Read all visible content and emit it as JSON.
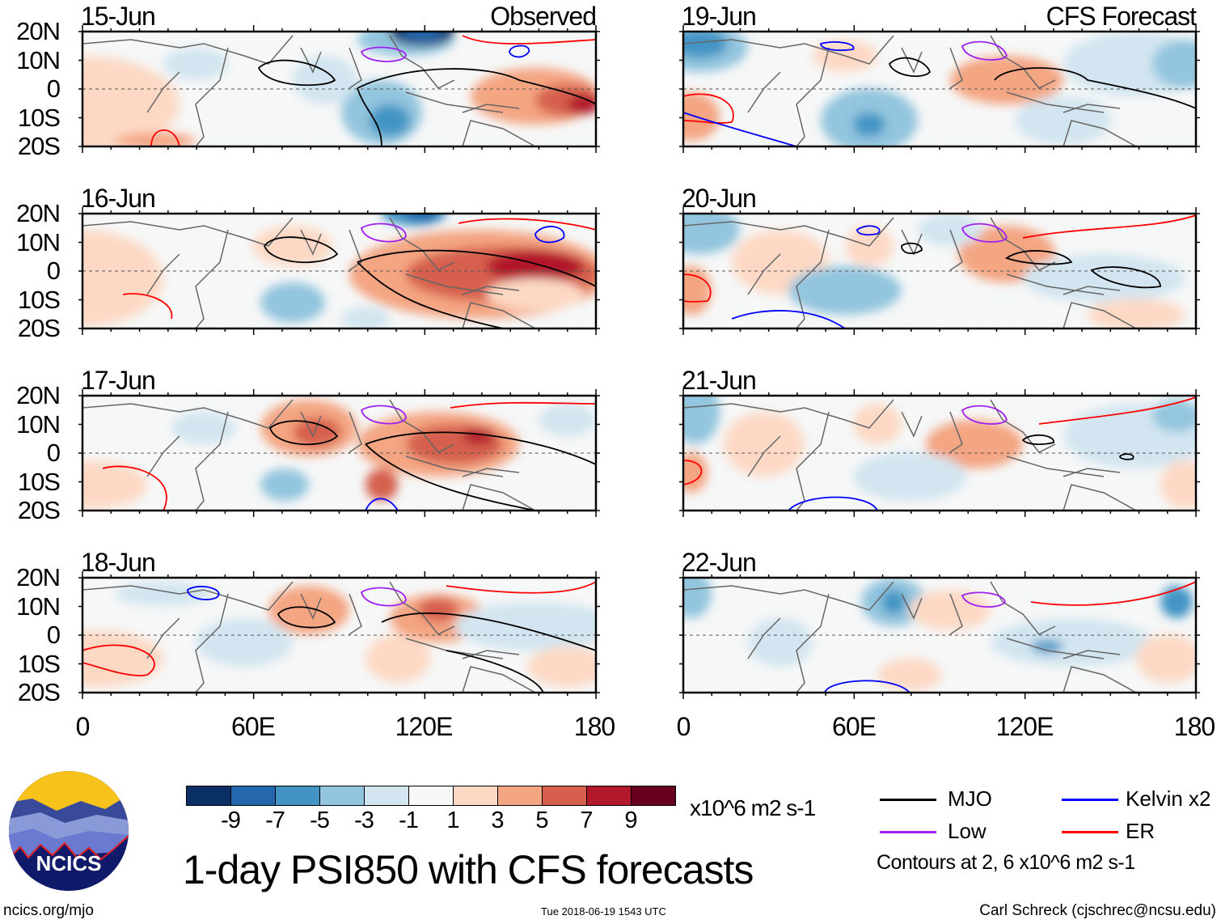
{
  "panels_left_header": "Observed",
  "panels_right_header": "CFS Forecast",
  "panels": [
    {
      "date": "15-Jun",
      "column": "observed"
    },
    {
      "date": "16-Jun",
      "column": "observed"
    },
    {
      "date": "17-Jun",
      "column": "observed"
    },
    {
      "date": "18-Jun",
      "column": "observed"
    },
    {
      "date": "19-Jun",
      "column": "forecast"
    },
    {
      "date": "20-Jun",
      "column": "forecast"
    },
    {
      "date": "21-Jun",
      "column": "forecast"
    },
    {
      "date": "22-Jun",
      "column": "forecast"
    }
  ],
  "lat_labels": [
    "20N",
    "10N",
    "0",
    "10S",
    "20S"
  ],
  "lon_labels": [
    "0",
    "60E",
    "120E",
    "180"
  ],
  "colorbar": {
    "colors": [
      "#0a2f64",
      "#2467ad",
      "#4394c4",
      "#92c5de",
      "#d2e5f0",
      "#f6f7f7",
      "#fdd9c5",
      "#f4a582",
      "#d6604d",
      "#b2182b",
      "#67001f"
    ],
    "labels": [
      "-9",
      "-7",
      "-5",
      "-3",
      "-1",
      "1",
      "3",
      "5",
      "7",
      "9"
    ],
    "units": "x10^6 m2 s-1"
  },
  "title": "1-day PSI850 with CFS forecasts",
  "legend": [
    {
      "label": "MJO",
      "color": "#000000"
    },
    {
      "label": "Kelvin x2",
      "color": "#0000ff"
    },
    {
      "label": "Low",
      "color": "#a020f0"
    },
    {
      "label": "ER",
      "color": "#ff0000"
    }
  ],
  "contour_note": "Contours at 2, 6 x10^6 m2 s-1",
  "logo": {
    "text": "NCICS"
  },
  "footer": {
    "url": "ncics.org/mjo",
    "timestamp": "Tue 2018-06-19 1543 UTC",
    "author": "Carl Schreck (cjschrec@ncsu.edu)"
  }
}
